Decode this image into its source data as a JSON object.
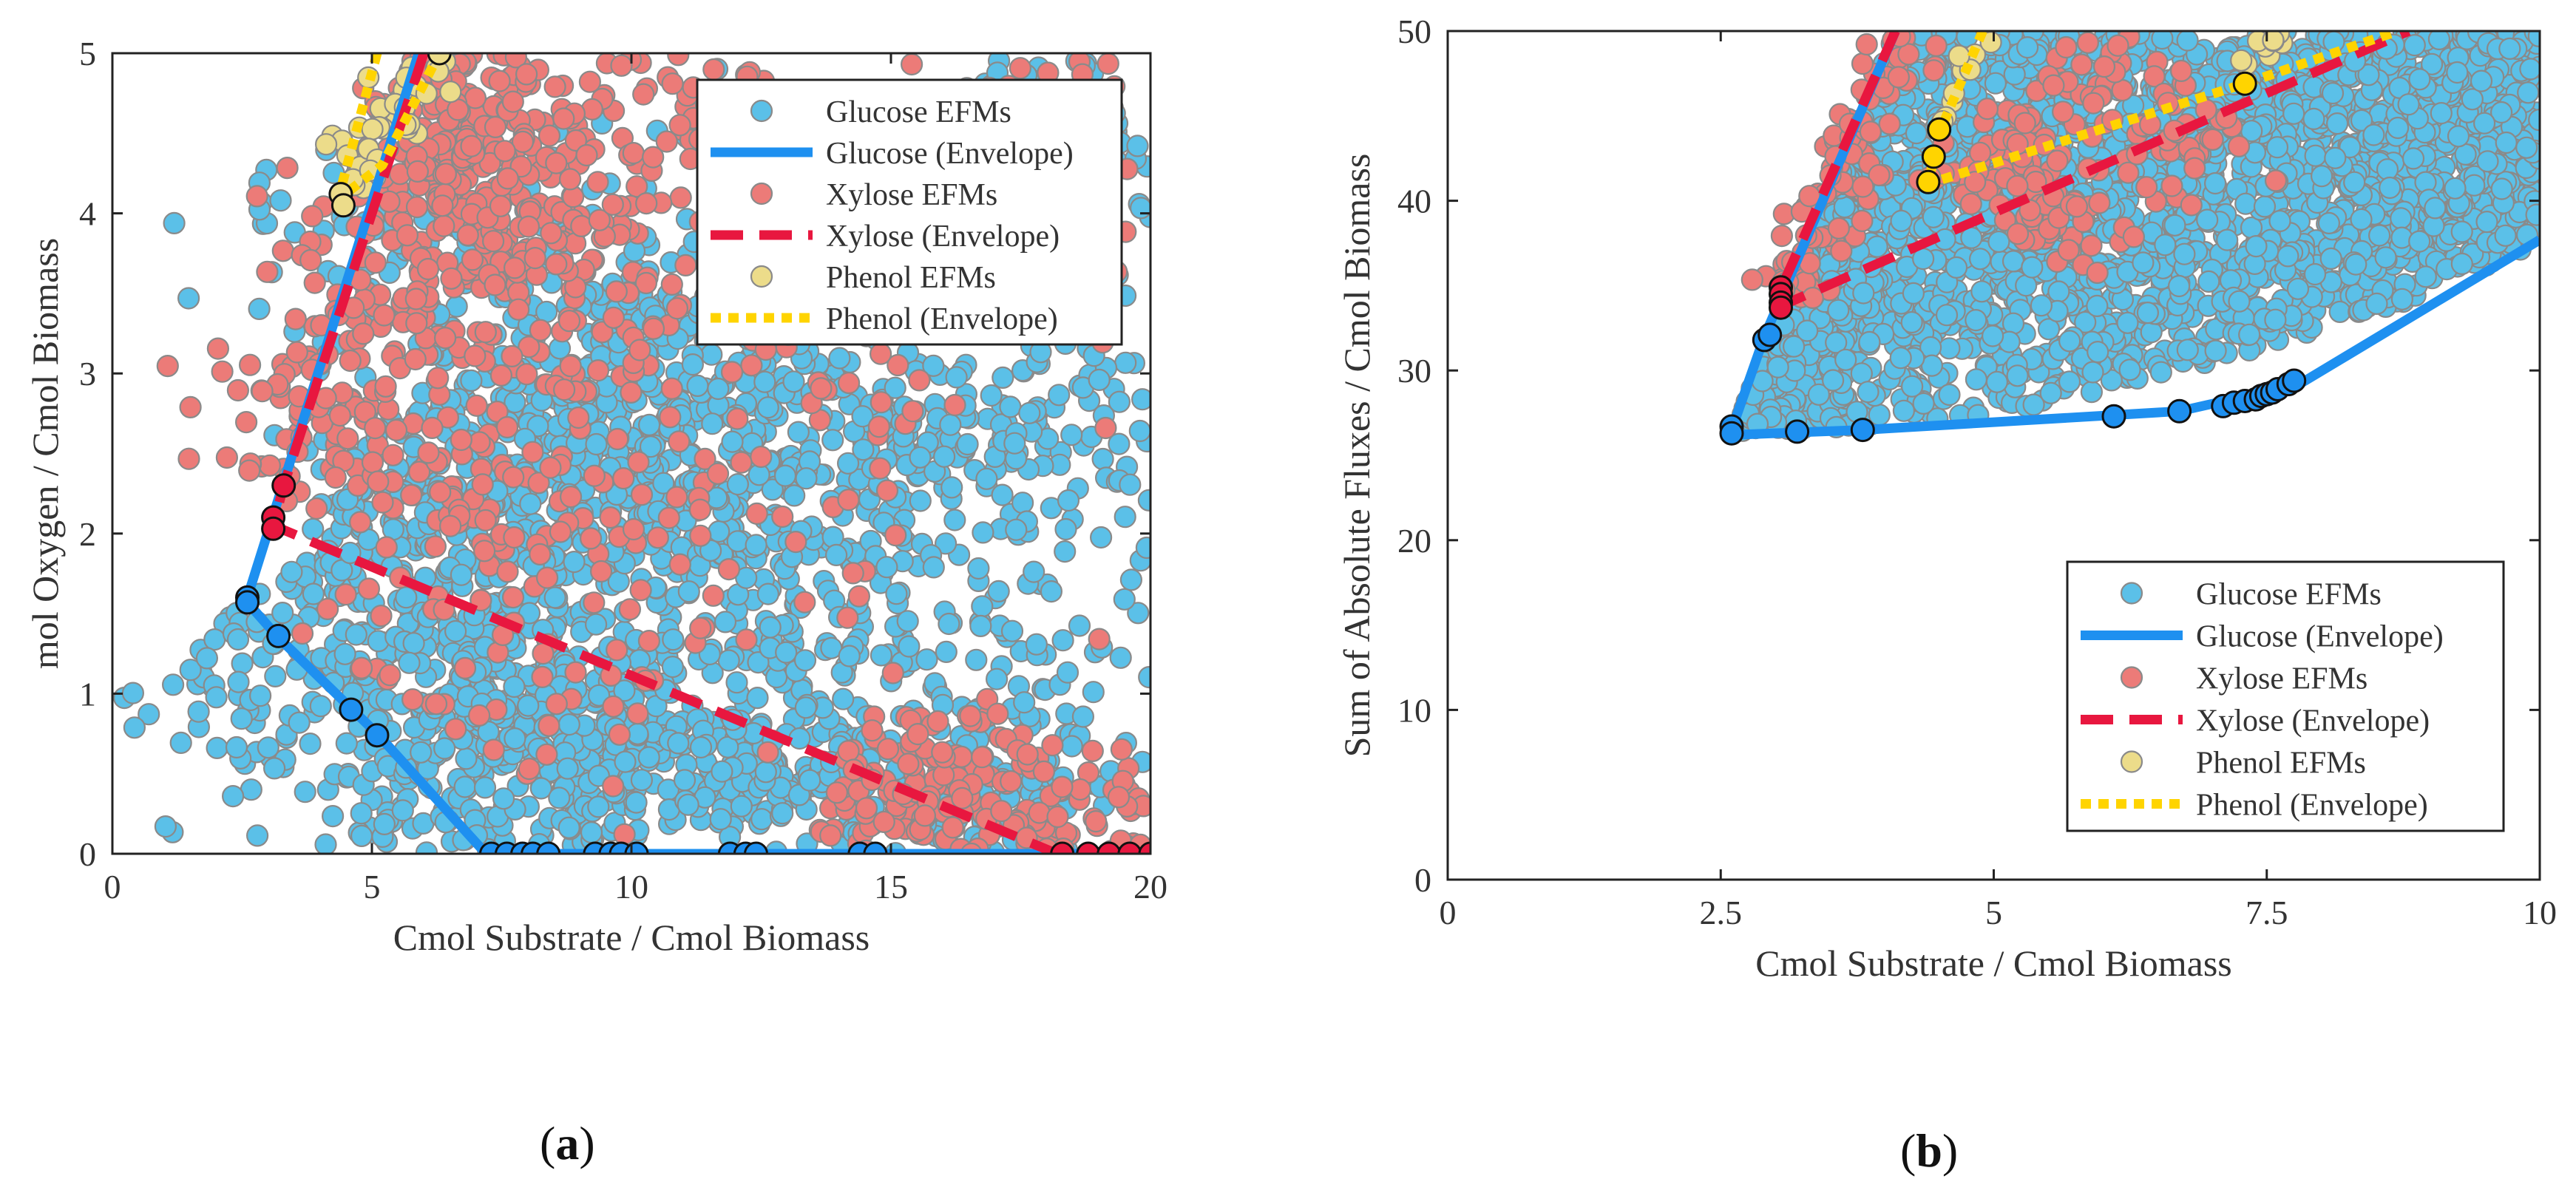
{
  "figure": {
    "panel_labels": [
      {
        "open": "(",
        "letter": "a",
        "close": ")"
      },
      {
        "open": "(",
        "letter": "b",
        "close": ")"
      }
    ]
  },
  "colors": {
    "glucose_efm": "#5bc0e8",
    "glucose_envelope": "#1e90f0",
    "xylose_efm": "#ec7b78",
    "xylose_envelope": "#e8173f",
    "phenol_efm": "#ecdc8a",
    "phenol_envelope": "#ffd400",
    "marker_edge": "#8a8a8a",
    "vertex_edge": "#111111"
  },
  "chart_data": [
    {
      "id": "a",
      "type": "scatter",
      "title": "",
      "xlabel": "Cmol Substrate / Cmol Biomass",
      "ylabel": "mol Oxygen / Cmol Biomass",
      "xlim": [
        0,
        20
      ],
      "ylim": [
        0,
        5
      ],
      "xticks": [
        0,
        5,
        10,
        15,
        20
      ],
      "yticks": [
        0,
        1,
        2,
        3,
        4,
        5
      ],
      "grid": false,
      "legend_position": "top-right",
      "legend": [
        "Glucose EFMs",
        "Glucose (Envelope)",
        "Xylose EFMs",
        "Xylose (Envelope)",
        "Phenol EFMs",
        "Phenol (Envelope)"
      ],
      "series": [
        {
          "name": "Glucose (Envelope)",
          "kind": "line",
          "color_key": "glucose_envelope",
          "dash": "solid",
          "x": [
            5.9,
            2.6,
            2.6,
            3.2,
            5.1,
            7.2,
            20
          ],
          "y": [
            5,
            1.6,
            1.57,
            1.35,
            0.75,
            0,
            0
          ]
        },
        {
          "name": "Xylose (Envelope)",
          "kind": "line",
          "color_key": "xylose_envelope",
          "dash": "dashed",
          "x": [
            6.0,
            3.3,
            3.1,
            18.2,
            20
          ],
          "y": [
            5,
            2.3,
            2.05,
            0,
            0
          ]
        },
        {
          "name": "Phenol (Envelope)",
          "kind": "line",
          "color_key": "phenol_envelope",
          "dash": "dotted",
          "x": [
            5.1,
            4.4,
            4.4,
            5.2,
            6.3
          ],
          "y": [
            5,
            4.15,
            4.1,
            4.3,
            5
          ]
        },
        {
          "name": "Glucose vertices",
          "kind": "vertex",
          "color_key": "glucose_envelope",
          "x": [
            2.6,
            2.6,
            3.2,
            4.6,
            5.1,
            7.3,
            7.6,
            7.9,
            8.1,
            8.4,
            9.3,
            9.6,
            9.8,
            10.1,
            11.9,
            12.2,
            12.4,
            14.4,
            14.7
          ],
          "y": [
            1.6,
            1.57,
            1.36,
            0.9,
            0.74,
            0,
            0,
            0,
            0,
            0,
            0,
            0,
            0,
            0,
            0,
            0,
            0,
            0,
            0
          ]
        },
        {
          "name": "Xylose vertices",
          "kind": "vertex",
          "color_key": "xylose_envelope",
          "x": [
            3.3,
            3.1,
            3.1,
            18.3,
            18.8,
            19.2,
            19.6,
            20
          ],
          "y": [
            2.3,
            2.1,
            2.03,
            0,
            0,
            0,
            0,
            0
          ]
        },
        {
          "name": "Phenol vertices",
          "kind": "vertex",
          "color_key": "phenol_efm",
          "x": [
            4.4,
            4.45,
            6.3
          ],
          "y": [
            4.12,
            4.05,
            5
          ]
        }
      ],
      "efm_clouds": [
        {
          "name": "Glucose EFMs",
          "color_key": "glucose_efm",
          "count": 2400,
          "bands": [
            {
              "x0": 2.7,
              "y0": 1.6,
              "x1": 9.0,
              "y1": 0.0,
              "spread": 0.9
            },
            {
              "x0": 4.0,
              "y0": 2.0,
              "x1": 20.0,
              "y1": 2.6,
              "spread": 0.7
            },
            {
              "x0": 5.0,
              "y0": 4.5,
              "x1": 12.0,
              "y1": 0.2,
              "spread": 1.0
            },
            {
              "x0": 7.0,
              "y0": 3.0,
              "x1": 20.0,
              "y1": 0.3,
              "spread": 1.1
            },
            {
              "x0": 6.0,
              "y0": 1.0,
              "x1": 18.0,
              "y1": 0.1,
              "spread": 0.5
            },
            {
              "x0": 9.0,
              "y0": 2.5,
              "x1": 20.0,
              "y1": 4.6,
              "spread": 0.8
            }
          ]
        },
        {
          "name": "Xylose EFMs",
          "color_key": "xylose_efm",
          "count": 1100,
          "bands": [
            {
              "x0": 3.3,
              "y0": 2.2,
              "x1": 7.5,
              "y1": 5.0,
              "spread": 0.5
            },
            {
              "x0": 6.5,
              "y0": 2.0,
              "x1": 11.5,
              "y1": 5.0,
              "spread": 0.6
            },
            {
              "x0": 6.0,
              "y0": 0.8,
              "x1": 20.0,
              "y1": 4.8,
              "spread": 0.9
            },
            {
              "x0": 6.0,
              "y0": 5.0,
              "x1": 8.0,
              "y1": 3.6,
              "spread": 0.4
            },
            {
              "x0": 14.0,
              "y0": 0.5,
              "x1": 20.0,
              "y1": 0.1,
              "spread": 0.5
            }
          ]
        },
        {
          "name": "Phenol EFMs",
          "color_key": "phenol_efm",
          "count": 40,
          "bands": [
            {
              "x0": 4.4,
              "y0": 4.1,
              "x1": 6.3,
              "y1": 5.0,
              "spread": 0.15
            }
          ]
        }
      ]
    },
    {
      "id": "b",
      "type": "scatter",
      "title": "",
      "xlabel": "Cmol Substrate / Cmol Biomass",
      "ylabel": "Sum of Absolute Fluxes / Cmol Biomass",
      "xlim": [
        0,
        10
      ],
      "ylim": [
        0,
        50
      ],
      "xticks": [
        0,
        2.5,
        5,
        7.5,
        10
      ],
      "xticklabels": [
        "0",
        "2.5",
        "5",
        "7.5",
        "10"
      ],
      "yticks": [
        0,
        10,
        20,
        30,
        40,
        50
      ],
      "grid": false,
      "legend_position": "bottom-right",
      "legend": [
        "Glucose EFMs",
        "Glucose (Envelope)",
        "Xylose EFMs",
        "Xylose (Envelope)",
        "Phenol EFMs",
        "Phenol (Envelope)"
      ],
      "series": [
        {
          "name": "Glucose (Envelope)",
          "kind": "line",
          "color_key": "glucose_envelope",
          "dash": "solid",
          "x": [
            4.1,
            2.9,
            2.6,
            2.6,
            3.8,
            6.7,
            7.8,
            10
          ],
          "y": [
            50,
            32,
            26.5,
            26.2,
            26.5,
            27.6,
            29.2,
            37.7
          ]
        },
        {
          "name": "Xylose (Envelope)",
          "kind": "line",
          "color_key": "xylose_envelope",
          "dash": "dashed",
          "x": [
            4.1,
            3.05,
            3.05,
            8.8
          ],
          "y": [
            50,
            34.8,
            33.8,
            50
          ]
        },
        {
          "name": "Phenol (Envelope)",
          "kind": "line",
          "color_key": "phenol_envelope",
          "dash": "dotted",
          "x": [
            4.9,
            4.5,
            4.4,
            4.5,
            7.3,
            8.7
          ],
          "y": [
            50,
            44,
            41,
            41.2,
            46.9,
            50
          ]
        },
        {
          "name": "Glucose vertices",
          "kind": "vertex",
          "color_key": "glucose_envelope",
          "x": [
            2.6,
            2.6,
            2.9,
            2.95,
            3.2,
            3.8,
            6.1,
            6.7,
            7.1,
            7.2,
            7.3,
            7.4,
            7.45,
            7.5,
            7.55,
            7.6,
            7.7,
            7.75
          ],
          "y": [
            26.7,
            26.3,
            31.8,
            32.1,
            26.4,
            26.5,
            27.3,
            27.6,
            27.9,
            28.1,
            28.2,
            28.3,
            28.5,
            28.6,
            28.7,
            28.9,
            29.2,
            29.4
          ]
        },
        {
          "name": "Xylose vertices",
          "kind": "vertex",
          "color_key": "xylose_envelope",
          "x": [
            3.05,
            3.05,
            3.05,
            3.05
          ],
          "y": [
            34.9,
            34.5,
            34.0,
            33.7
          ]
        },
        {
          "name": "Phenol vertices",
          "kind": "vertex",
          "color_key": "phenol_envelope",
          "x": [
            4.4,
            4.45,
            4.5,
            7.3
          ],
          "y": [
            41.1,
            42.6,
            44.2,
            46.9
          ]
        }
      ],
      "efm_clouds": [
        {
          "name": "Glucose EFMs",
          "color_key": "glucose_efm",
          "count": 2600,
          "region": {
            "x": [
              2.7,
              10.0
            ],
            "y_low": [
              26.4,
              37.5
            ],
            "y_high_start": 50,
            "left_x_at_top": 4.1
          }
        },
        {
          "name": "Xylose EFMs",
          "color_key": "xylose_efm",
          "count": 260,
          "bands": [
            {
              "x0": 3.1,
              "y0": 34.5,
              "x1": 4.2,
              "y1": 50,
              "spread": 0.15
            },
            {
              "x0": 4.6,
              "y0": 40.0,
              "x1": 6.3,
              "y1": 50,
              "spread": 0.2
            },
            {
              "x0": 5.2,
              "y0": 38.0,
              "x1": 7.2,
              "y1": 45,
              "spread": 0.3
            }
          ]
        },
        {
          "name": "Phenol EFMs",
          "color_key": "phenol_efm",
          "count": 20,
          "bands": [
            {
              "x0": 4.5,
              "y0": 44.0,
              "x1": 4.9,
              "y1": 49.5,
              "spread": 0.05
            },
            {
              "x0": 7.3,
              "y0": 48.0,
              "x1": 7.6,
              "y1": 50,
              "spread": 0.05
            }
          ]
        }
      ]
    }
  ]
}
